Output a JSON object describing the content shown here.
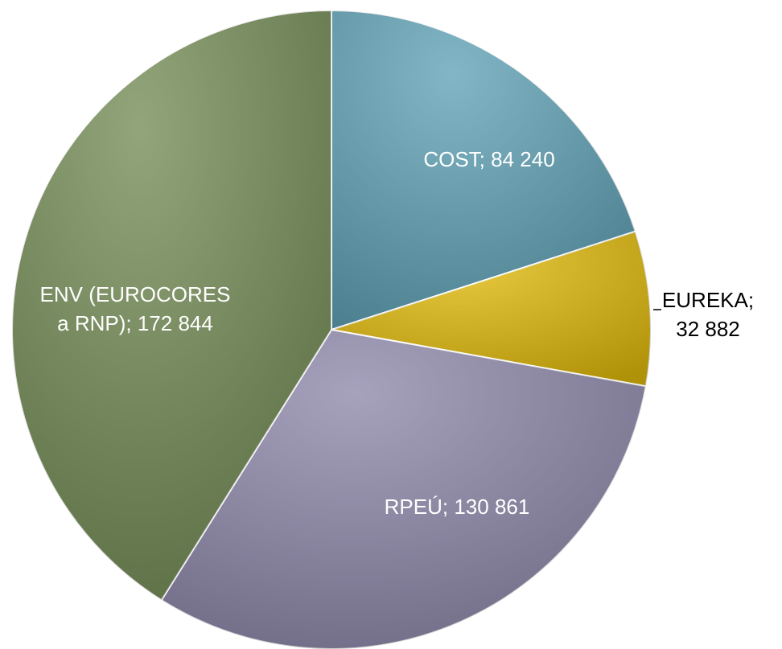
{
  "chart_data": {
    "type": "pie",
    "labels": [
      [
        "COST; 84 240"
      ],
      [
        "EUREKA;",
        "32 882"
      ],
      [
        "RPEÚ; 130 861"
      ],
      [
        "ENV (EUROCORES",
        "a RNP); 172 844"
      ]
    ],
    "values": [
      84240,
      32882,
      130861,
      172844
    ],
    "colors": [
      "#5fa2b6",
      "#e2bb0a",
      "#8d87a9",
      "#748c55"
    ]
  }
}
